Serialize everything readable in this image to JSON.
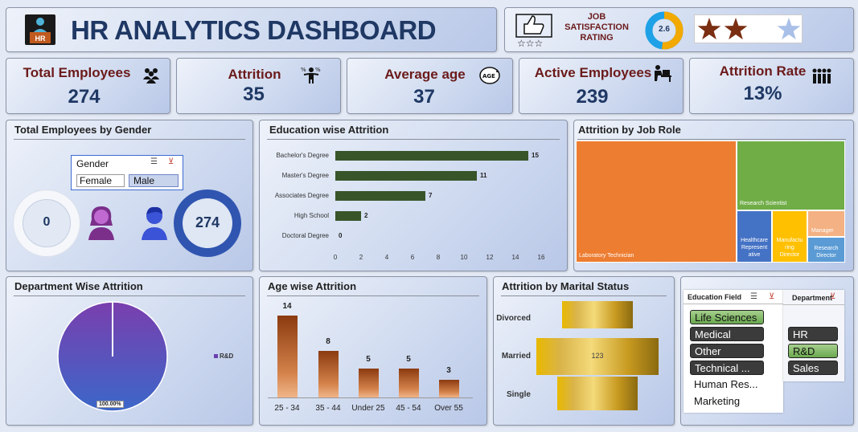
{
  "header": {
    "title": "HR ANALYTICS DASHBOARD",
    "logo_text": "HR"
  },
  "rating": {
    "label": "JOB SATISFACTION RATING",
    "value": "2.6",
    "fraction": 0.52,
    "stars": 2.6,
    "colors": {
      "filled": "#7a2e12",
      "empty": "#ffffff",
      "partial": "#a9c0e8"
    }
  },
  "kpis": [
    {
      "title": "Total Employees",
      "value": "274",
      "icon": "people-group-icon"
    },
    {
      "title": "Attrition",
      "value": "35",
      "icon": "person-percent-icon"
    },
    {
      "title": "Average age",
      "value": "37",
      "icon": "age-icon"
    },
    {
      "title": "Active Employees",
      "value": "239",
      "icon": "person-desk-icon"
    },
    {
      "title": "Attrition Rate",
      "value": "13%",
      "icon": "team-icon"
    }
  ],
  "gender": {
    "title": "Total Employees by Gender",
    "slicer": {
      "title": "Gender",
      "options": [
        "Female",
        "Male"
      ],
      "selected": "Male"
    },
    "female_count": "0",
    "male_count": "274"
  },
  "education_attrition": {
    "title": "Education wise Attrition",
    "chart_data": {
      "type": "bar",
      "orientation": "horizontal",
      "categories": [
        "Bachelor's Degree",
        "Master's Degree",
        "Associates Degree",
        "High School",
        "Doctoral Degree"
      ],
      "values": [
        15,
        11,
        7,
        2,
        0
      ],
      "xlim": [
        0,
        16
      ],
      "xticks": [
        "0",
        "2",
        "4",
        "6",
        "8",
        "10",
        "12",
        "14",
        "16"
      ],
      "color": "#38552a"
    }
  },
  "job_role": {
    "title": "Attrition by Job Role",
    "chart_data": {
      "type": "treemap",
      "items": [
        {
          "label": "Laboratory Technician",
          "color": "#ed7d31"
        },
        {
          "label": "Research Scientist",
          "color": "#70ad47"
        },
        {
          "label": "Healthcare Representative",
          "label_lines": [
            "Healthcare",
            "Represent",
            "ative"
          ],
          "color": "#4472c4"
        },
        {
          "label": "Manufacturing Director",
          "label_lines": [
            "Manufactu",
            "ring",
            "Director"
          ],
          "color": "#ffc000"
        },
        {
          "label": "Manager",
          "color": "#f4b183"
        },
        {
          "label": "Research Director",
          "label_lines": [
            "Research",
            "Director"
          ],
          "color": "#5b9bd5"
        }
      ]
    }
  },
  "department": {
    "title": "Department Wise Attrition",
    "chart_data": {
      "type": "pie",
      "labels": [
        "R&D"
      ],
      "values": [
        100
      ],
      "data_label": "100.00%",
      "legend": [
        "R&D"
      ],
      "legend_position": "right",
      "color": "#6a3fb0"
    }
  },
  "age_attrition": {
    "title": "Age wise Attrition",
    "chart_data": {
      "type": "bar",
      "categories": [
        "25 - 34",
        "35 - 44",
        "Under 25",
        "45 - 54",
        "Over 55"
      ],
      "values": [
        14,
        8,
        5,
        5,
        3
      ],
      "ylim": [
        0,
        14
      ]
    }
  },
  "marital": {
    "title": "Attrition by Marital Status",
    "chart_data": {
      "type": "funnel",
      "categories": [
        "Divorced",
        "Married",
        "Single"
      ],
      "values": [
        null,
        123,
        null
      ],
      "data_labels": [
        "",
        "123",
        ""
      ],
      "relative_width": [
        0.5,
        0.84,
        0.5
      ]
    }
  },
  "slicers": {
    "education": {
      "title": "Education Field",
      "items": [
        {
          "label": "Life Sciences",
          "state": "selected"
        },
        {
          "label": "Medical",
          "state": "unselected"
        },
        {
          "label": "Other",
          "state": "unselected"
        },
        {
          "label": "Technical ...",
          "state": "unselected"
        },
        {
          "label": "Human Res...",
          "state": "nodata"
        },
        {
          "label": "Marketing",
          "state": "nodata"
        }
      ]
    },
    "department": {
      "title": "Department",
      "items": [
        {
          "label": "HR",
          "state": "unselected"
        },
        {
          "label": "R&D",
          "state": "selected"
        },
        {
          "label": "Sales",
          "state": "unselected"
        }
      ]
    }
  }
}
